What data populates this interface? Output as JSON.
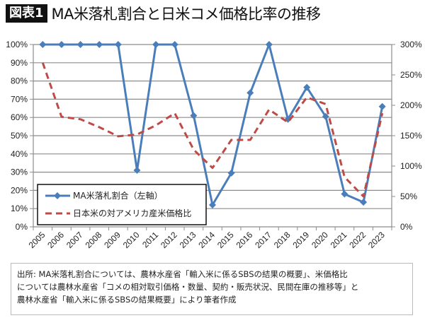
{
  "title": {
    "badge": "図表1",
    "text": "MA米落札割合と日米コメ価格比率の推移"
  },
  "chart_data": {
    "type": "line",
    "title": "MA米落札割合と日米コメ価格比率の推移",
    "categories": [
      "2005",
      "2006",
      "2007",
      "2008",
      "2009",
      "2010",
      "2011",
      "2012",
      "2013",
      "2014",
      "2015",
      "2016",
      "2017",
      "2018",
      "2019",
      "2020",
      "2021",
      "2022",
      "2023"
    ],
    "y_left": {
      "ylim": [
        0,
        100
      ],
      "ticks": [
        "0%",
        "10%",
        "20%",
        "30%",
        "40%",
        "50%",
        "60%",
        "70%",
        "80%",
        "90%",
        "100%"
      ]
    },
    "y_right": {
      "ylim": [
        0,
        300
      ],
      "ticks": [
        "0%",
        "50%",
        "100%",
        "150%",
        "200%",
        "250%",
        "300%"
      ]
    },
    "grid": true,
    "legend_position": "bottom-left",
    "series": [
      {
        "name": "MA米落札割合（左軸）",
        "axis": "left",
        "style": "solid-diamond",
        "color": "#4a7ebb",
        "values": [
          100,
          100,
          100,
          100,
          100,
          31,
          100,
          100,
          61,
          12,
          29.5,
          73.5,
          100,
          59,
          76.5,
          60.5,
          18,
          13.5,
          66
        ]
      },
      {
        "name": "日本米の対アメリカ産米価格比",
        "axis": "right",
        "style": "dashed",
        "color": "#be4b48",
        "values": [
          270,
          181,
          177,
          164,
          149,
          152,
          167,
          187,
          127,
          97,
          143,
          143,
          193,
          172,
          213,
          202,
          82,
          50,
          187
        ]
      }
    ]
  },
  "footer": {
    "lines": [
      "出所: MA米落札割合については、農林水産省「輸入米に係るSBSの結果の概要」、米価格比",
      "については農林水産省「コメの相対取引価格・数量、契約・販売状況、民間在庫の推移等」と",
      "農林水産省「輸入米に係るSBSの結果概要」により筆者作成"
    ]
  }
}
